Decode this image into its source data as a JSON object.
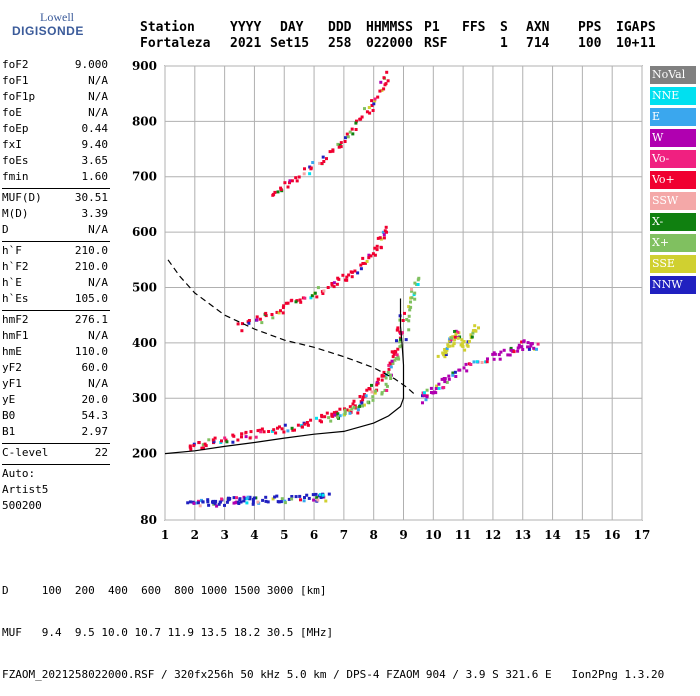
{
  "logo": {
    "line1": "Lowell",
    "line2": "DIGISONDE"
  },
  "header": {
    "row1": [
      "Station",
      "YYYY",
      "DAY",
      "DDD",
      "HHMMSS",
      "P1",
      "FFS",
      "S",
      "AXN",
      "PPS",
      "IGA",
      "PS"
    ],
    "row2": [
      "Fortaleza",
      "2021",
      "Set15",
      "258",
      "022000",
      "RSF",
      "1",
      "714",
      "100",
      "10+",
      "11"
    ]
  },
  "params": {
    "group1": [
      {
        "k": "foF2",
        "v": "9.000"
      },
      {
        "k": "foF1",
        "v": "N/A"
      },
      {
        "k": "foF1p",
        "v": "N/A"
      },
      {
        "k": "foE",
        "v": "N/A"
      },
      {
        "k": "foEp",
        "v": "0.44"
      },
      {
        "k": "fxI",
        "v": "9.40"
      },
      {
        "k": "foEs",
        "v": "3.65"
      },
      {
        "k": "fmin",
        "v": "1.60"
      }
    ],
    "group2": [
      {
        "k": "MUF(D)",
        "v": "30.51"
      },
      {
        "k": "M(D)",
        "v": "3.39"
      },
      {
        "k": "D",
        "v": "N/A"
      }
    ],
    "group3": [
      {
        "k": "h`F",
        "v": "210.0"
      },
      {
        "k": "h`F2",
        "v": "210.0"
      },
      {
        "k": "h`E",
        "v": "N/A"
      },
      {
        "k": "h`Es",
        "v": "105.0"
      }
    ],
    "group4": [
      {
        "k": "hmF2",
        "v": "276.1"
      },
      {
        "k": "hmF1",
        "v": "N/A"
      },
      {
        "k": "hmE",
        "v": "110.0"
      },
      {
        "k": "yF2",
        "v": "60.0"
      },
      {
        "k": "yF1",
        "v": "N/A"
      },
      {
        "k": "yE",
        "v": "20.0"
      },
      {
        "k": "B0",
        "v": "54.3"
      },
      {
        "k": "B1",
        "v": "2.97"
      }
    ],
    "group5": [
      {
        "k": "C-level",
        "v": "22"
      }
    ],
    "tail": [
      "Auto:",
      "Artist5",
      "500200"
    ]
  },
  "legend": [
    {
      "label": "NoVal",
      "color": "#808080"
    },
    {
      "label": "NNE",
      "color": "#00e0f0"
    },
    {
      "label": "E",
      "color": "#3aa7ee"
    },
    {
      "label": "W",
      "color": "#b000b0"
    },
    {
      "label": "Vo-",
      "color": "#f02080"
    },
    {
      "label": "Vo+",
      "color": "#f00030"
    },
    {
      "label": "SSW",
      "color": "#f4a8a8"
    },
    {
      "label": "X-",
      "color": "#108010"
    },
    {
      "label": "X+",
      "color": "#80c060"
    },
    {
      "label": "SSE",
      "color": "#d0d030"
    },
    {
      "label": "NNW",
      "color": "#2020c0"
    }
  ],
  "footer": {
    "line1": "D     100  200  400  600  800 1000 1500 3000 [km]",
    "line2": "MUF   9.4  9.5 10.0 10.7 11.9 13.5 18.2 30.5 [MHz]",
    "line3": "FZAOM_2021258022000.RSF / 320fx256h 50 kHz 5.0 km / DPS-4 FZAOM 904 / 3.9 S 321.6 E   Ion2Png 1.3.20"
  },
  "chart_data": {
    "type": "scatter",
    "xlim": [
      1,
      17
    ],
    "ylim": [
      80,
      900
    ],
    "xticks": [
      1,
      2,
      3,
      4,
      5,
      6,
      7,
      8,
      9,
      10,
      11,
      12,
      13,
      14,
      15,
      16,
      17
    ],
    "yticks": [
      80,
      200,
      300,
      400,
      500,
      600,
      700,
      800,
      900
    ],
    "grid": true,
    "traces": [
      {
        "name": "F-trace first hop",
        "color_key": "Vo+",
        "points": [
          [
            1.8,
            215
          ],
          [
            2.5,
            222
          ],
          [
            3.5,
            232
          ],
          [
            4.5,
            242
          ],
          [
            5.5,
            255
          ],
          [
            6.5,
            270
          ],
          [
            7.2,
            285
          ],
          [
            7.8,
            310
          ],
          [
            8.3,
            340
          ],
          [
            8.7,
            390
          ],
          [
            8.95,
            460
          ]
        ]
      },
      {
        "name": "F-trace second hop",
        "color_key": "Vo+",
        "points": [
          [
            3.5,
            430
          ],
          [
            4.5,
            455
          ],
          [
            5.5,
            480
          ],
          [
            6.5,
            505
          ],
          [
            7.3,
            530
          ],
          [
            8.0,
            570
          ],
          [
            8.5,
            610
          ]
        ]
      },
      {
        "name": "F-trace third hop",
        "color_key": "Vo+",
        "points": [
          [
            4.5,
            670
          ],
          [
            5.5,
            705
          ],
          [
            6.5,
            745
          ],
          [
            7.3,
            790
          ],
          [
            8.0,
            840
          ],
          [
            8.5,
            890
          ]
        ]
      },
      {
        "name": "X-trace",
        "color_key": "X+",
        "points": [
          [
            6.5,
            265
          ],
          [
            7.5,
            285
          ],
          [
            8.3,
            320
          ],
          [
            8.8,
            380
          ],
          [
            9.2,
            470
          ],
          [
            9.4,
            520
          ]
        ]
      },
      {
        "name": "Es layer",
        "color_key": "NNW",
        "points": [
          [
            1.8,
            112
          ],
          [
            2.5,
            114
          ],
          [
            3.0,
            116
          ],
          [
            3.5,
            117
          ],
          [
            4.0,
            118
          ],
          [
            5.0,
            120
          ],
          [
            6.0,
            122
          ],
          [
            6.4,
            124
          ]
        ]
      },
      {
        "name": "Oblique spread",
        "color_key": "W",
        "points": [
          [
            9.5,
            300
          ],
          [
            10.0,
            320
          ],
          [
            10.5,
            340
          ],
          [
            11.5,
            370
          ],
          [
            12.5,
            385
          ],
          [
            13.0,
            400
          ],
          [
            13.5,
            395
          ]
        ]
      },
      {
        "name": "SSE echoes",
        "color_key": "SSE",
        "points": [
          [
            10.2,
            380
          ],
          [
            10.5,
            400
          ],
          [
            10.7,
            420
          ],
          [
            11.0,
            395
          ],
          [
            11.5,
            440
          ]
        ]
      }
    ],
    "profile": [
      [
        1.0,
        200
      ],
      [
        2.0,
        205
      ],
      [
        3.0,
        213
      ],
      [
        4.0,
        220
      ],
      [
        5.0,
        228
      ],
      [
        6.0,
        235
      ],
      [
        7.0,
        240
      ],
      [
        8.0,
        255
      ],
      [
        8.5,
        268
      ],
      [
        8.9,
        285
      ],
      [
        9.0,
        300
      ],
      [
        9.0,
        330
      ],
      [
        9.0,
        360
      ],
      [
        8.95,
        400
      ],
      [
        8.9,
        430
      ],
      [
        8.9,
        480
      ]
    ],
    "muf_curve": [
      [
        1.1,
        550
      ],
      [
        1.5,
        520
      ],
      [
        2.0,
        490
      ],
      [
        3.0,
        450
      ],
      [
        4.0,
        425
      ],
      [
        5.0,
        405
      ],
      [
        6.0,
        392
      ],
      [
        7.0,
        375
      ],
      [
        8.0,
        355
      ],
      [
        8.7,
        335
      ],
      [
        9.1,
        320
      ],
      [
        9.4,
        306
      ]
    ]
  }
}
